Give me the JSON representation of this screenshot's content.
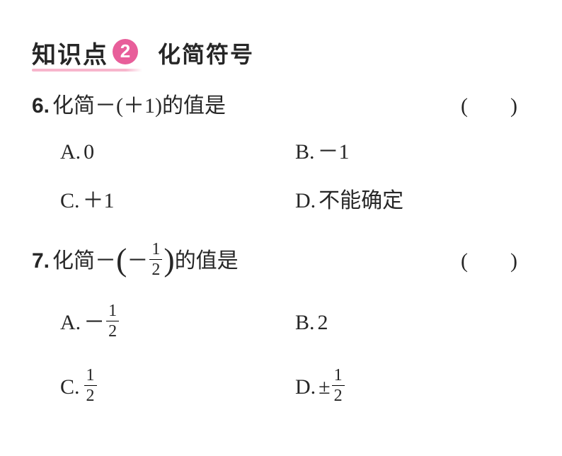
{
  "colors": {
    "text": "#262626",
    "badge_bg": "#e85e9a",
    "badge_text": "#ffffff",
    "underline": "#f7b5cc",
    "background": "#ffffff"
  },
  "header": {
    "kp_label": "知识点",
    "badge_number": "2",
    "section_title": "化简符号"
  },
  "q6": {
    "number": "6.",
    "stem_prefix": "化简",
    "stem_expr": "－(＋1)",
    "stem_suffix": "的值是",
    "paren": "(　　)",
    "options": {
      "A": {
        "label": "A.",
        "value": "0"
      },
      "B": {
        "label": "B.",
        "value": "－1"
      },
      "C": {
        "label": "C.",
        "value": "＋1"
      },
      "D": {
        "label": "D.",
        "value": "不能确定"
      }
    }
  },
  "q7": {
    "number": "7.",
    "stem_prefix": "化简",
    "minus": "－",
    "frac_num": "1",
    "frac_den": "2",
    "stem_suffix": "的值是",
    "paren": "(　　)",
    "options": {
      "A": {
        "label": "A.",
        "prefix": "－",
        "num": "1",
        "den": "2"
      },
      "B": {
        "label": "B.",
        "value": "2"
      },
      "C": {
        "label": "C.",
        "num": "1",
        "den": "2"
      },
      "D": {
        "label": "D.",
        "prefix": "±",
        "num": "1",
        "den": "2"
      }
    }
  }
}
